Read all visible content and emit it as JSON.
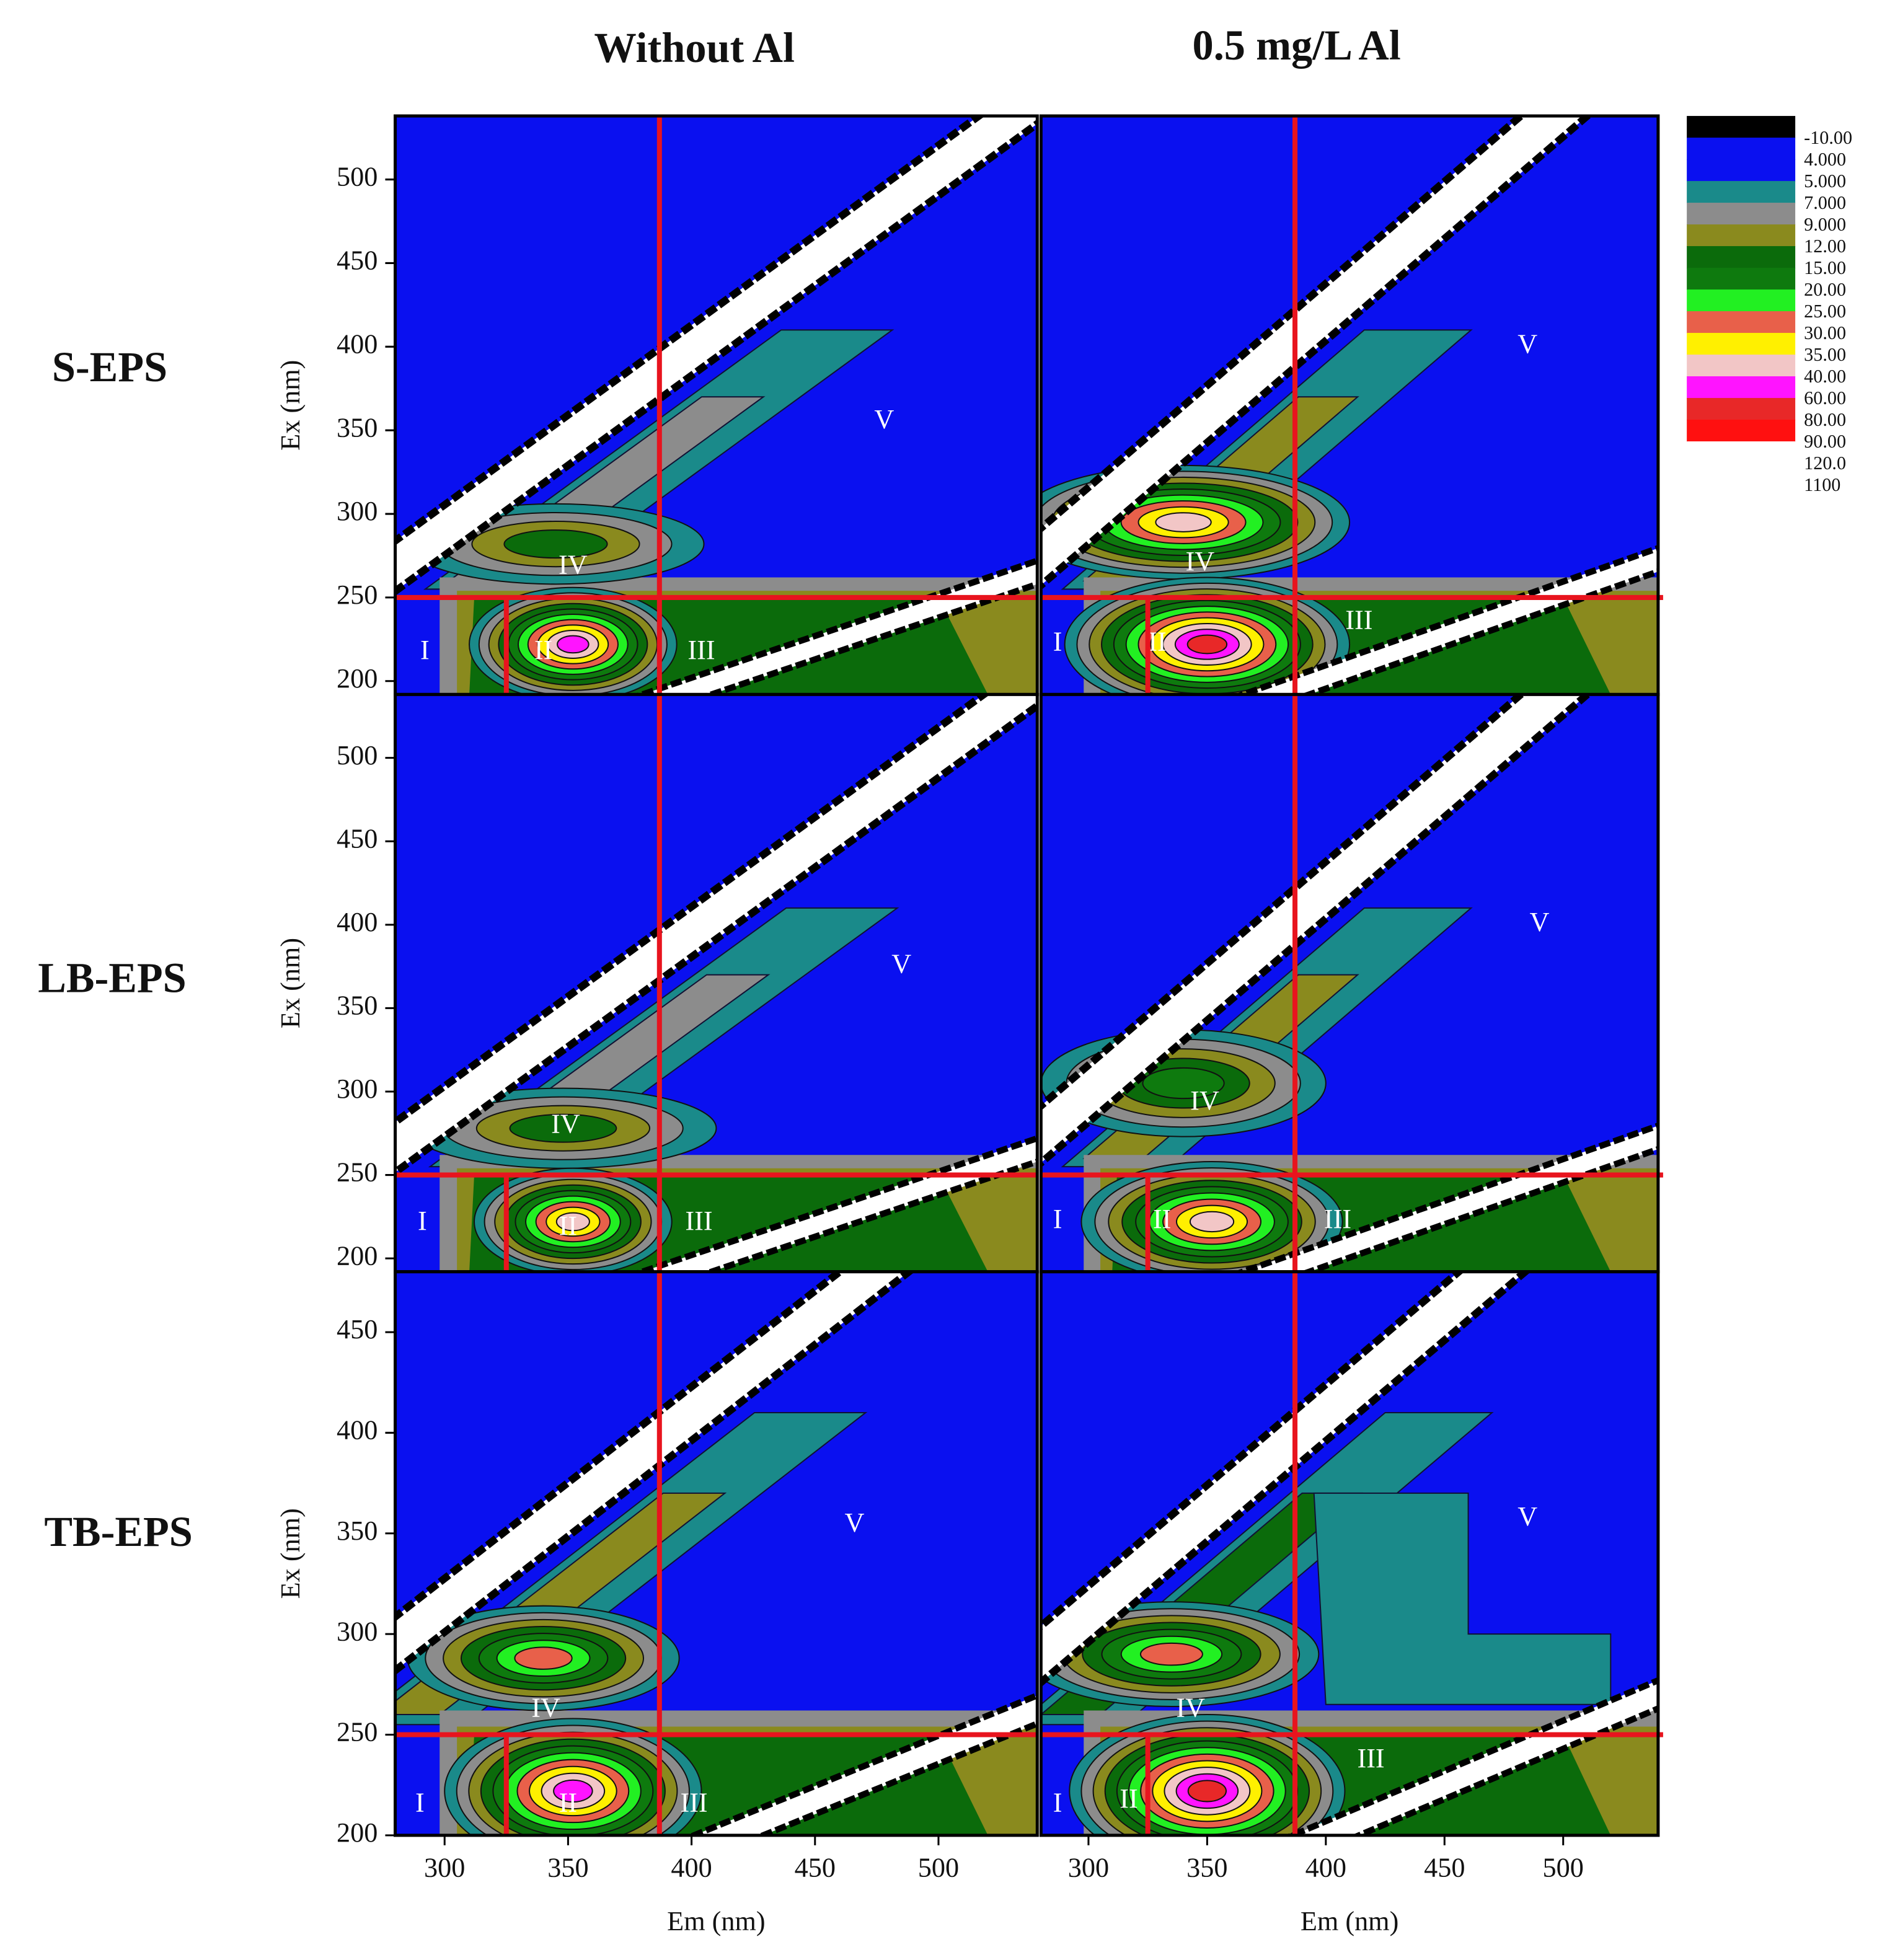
{
  "column_titles": [
    "Without Al",
    "0.5 mg/L Al"
  ],
  "row_labels": [
    "S-EPS",
    "LB-EPS",
    "TB-EPS"
  ],
  "chart_data": [
    {
      "type": "contour",
      "xlim": [
        280,
        540
      ],
      "ylim": [
        192,
        538
      ],
      "yticks": [
        200,
        250,
        300,
        350,
        400,
        450,
        500
      ],
      "ylabel": "Ex (nm)",
      "regions": [
        "I",
        "II",
        "III",
        "IV",
        "V"
      ]
    },
    {
      "type": "contour",
      "xlim": [
        280,
        540
      ],
      "ylim": [
        192,
        538
      ],
      "regions": [
        "I",
        "II",
        "III",
        "IV",
        "V"
      ]
    },
    {
      "type": "contour",
      "xlim": [
        280,
        540
      ],
      "ylim": [
        192,
        538
      ],
      "yticks": [
        200,
        250,
        300,
        350,
        400,
        450,
        500
      ],
      "ylabel": "Ex (nm)",
      "regions": [
        "I",
        "II",
        "III",
        "IV",
        "V"
      ]
    },
    {
      "type": "contour",
      "xlim": [
        280,
        540
      ],
      "ylim": [
        192,
        538
      ],
      "regions": [
        "I",
        "II",
        "III",
        "IV",
        "V"
      ]
    },
    {
      "type": "contour",
      "xlim": [
        280,
        540
      ],
      "ylim": [
        200,
        480
      ],
      "yticks": [
        200,
        250,
        300,
        350,
        400,
        450
      ],
      "ylabel": "Ex (nm)",
      "xticks": [
        300,
        350,
        400,
        450,
        500
      ],
      "xlabel": "Em (nm)",
      "regions": [
        "I",
        "II",
        "III",
        "IV",
        "V"
      ]
    },
    {
      "type": "contour",
      "xlim": [
        280,
        540
      ],
      "ylim": [
        200,
        480
      ],
      "xticks": [
        300,
        350,
        400,
        450,
        500
      ],
      "xlabel": "Em (nm)",
      "regions": [
        "I",
        "II",
        "III",
        "IV",
        "V"
      ]
    }
  ],
  "guide_lines": {
    "color": "#e8141e",
    "em": [
      325,
      387
    ],
    "ex": 250
  },
  "colorbar": {
    "levels": [
      {
        "value": -10,
        "label": "-10.00"
      },
      {
        "value": 4,
        "label": "4.000"
      },
      {
        "value": 5,
        "label": "5.000"
      },
      {
        "value": 7,
        "label": "7.000"
      },
      {
        "value": 9,
        "label": "9.000"
      },
      {
        "value": 12,
        "label": "12.00"
      },
      {
        "value": 15,
        "label": "15.00"
      },
      {
        "value": 20,
        "label": "20.00"
      },
      {
        "value": 25,
        "label": "25.00"
      },
      {
        "value": 30,
        "label": "30.00"
      },
      {
        "value": 35,
        "label": "35.00"
      },
      {
        "value": 40,
        "label": "40.00"
      },
      {
        "value": 60,
        "label": "60.00"
      },
      {
        "value": 80,
        "label": "80.00"
      },
      {
        "value": 90,
        "label": "90.00"
      },
      {
        "value": 120,
        "label": "120.0"
      },
      1100
    ],
    "colors": [
      "#000000",
      "#0a10f0",
      "#0a10f0",
      "#1a8a8a",
      "#8c8c8c",
      "#8a8a1e",
      "#0b6b0b",
      "#0e7a0e",
      "#22f022",
      "#e8604a",
      "#fff000",
      "#f2c6c6",
      "#ff14ff",
      "#e82828",
      "#ff1010",
      "#ffffff"
    ]
  }
}
